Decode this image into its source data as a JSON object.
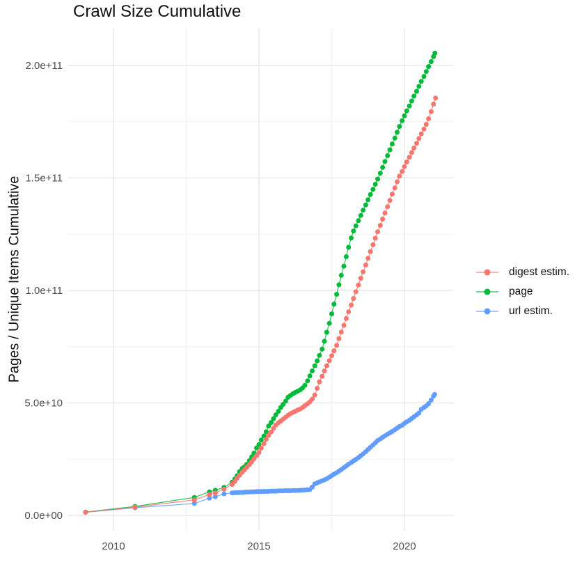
{
  "chart_data": {
    "type": "scatter",
    "title": "Crawl Size Cumulative",
    "xlabel": "",
    "ylabel": "Pages / Unique Items Cumulative",
    "legend_position": "right",
    "grid": true,
    "y_value_unit": "1e9",
    "x_axis": {
      "range": [
        2008.42,
        2021.7
      ],
      "ticks": [
        2010,
        2015,
        2020
      ],
      "tick_labels": [
        "2010",
        "2015",
        "2020"
      ],
      "minor_ticks": [
        2012.5,
        2017.5
      ]
    },
    "y_axis": {
      "range": [
        -6.8,
        216.7
      ],
      "ticks": [
        0,
        50,
        100,
        150,
        200
      ],
      "tick_labels": [
        "0.0e+00",
        "5.0e+10",
        "1.0e+11",
        "1.5e+11",
        "2.0e+11"
      ],
      "minor_ticks": [
        25,
        75,
        125,
        175
      ]
    },
    "series": [
      {
        "name": "digest estim.",
        "color": "#F8766D",
        "points": [
          [
            2009.04,
            1.4
          ],
          [
            2010.74,
            3.7
          ],
          [
            2012.78,
            6.9
          ],
          [
            2013.3,
            9.3
          ],
          [
            2013.5,
            10
          ],
          [
            2013.8,
            11.7
          ],
          [
            2014.08,
            13.8
          ],
          [
            2014.17,
            15.1
          ],
          [
            2014.25,
            16.5
          ],
          [
            2014.33,
            17.9
          ],
          [
            2014.42,
            19.2
          ],
          [
            2014.5,
            20.3
          ],
          [
            2014.58,
            21.4
          ],
          [
            2014.67,
            22.6
          ],
          [
            2014.75,
            23.8
          ],
          [
            2014.83,
            25.2
          ],
          [
            2014.92,
            26.6
          ],
          [
            2015,
            28
          ],
          [
            2015.08,
            29.9
          ],
          [
            2015.17,
            31.9
          ],
          [
            2015.25,
            33.8
          ],
          [
            2015.33,
            35.6
          ],
          [
            2015.42,
            37.1
          ],
          [
            2015.5,
            38.7
          ],
          [
            2015.58,
            40.2
          ],
          [
            2015.67,
            41.2
          ],
          [
            2015.75,
            42
          ],
          [
            2015.83,
            42.8
          ],
          [
            2015.92,
            43.7
          ],
          [
            2016,
            44.5
          ],
          [
            2016.08,
            45.2
          ],
          [
            2016.17,
            45.8
          ],
          [
            2016.25,
            46.3
          ],
          [
            2016.33,
            46.8
          ],
          [
            2016.42,
            47.3
          ],
          [
            2016.5,
            48
          ],
          [
            2016.58,
            48.8
          ],
          [
            2016.67,
            49.6
          ],
          [
            2016.75,
            50.5
          ],
          [
            2016.83,
            51.7
          ],
          [
            2016.92,
            53.5
          ],
          [
            2017,
            56.5
          ],
          [
            2017.08,
            59.4
          ],
          [
            2017.17,
            61.9
          ],
          [
            2017.25,
            64.2
          ],
          [
            2017.33,
            66.5
          ],
          [
            2017.42,
            68.8
          ],
          [
            2017.5,
            71
          ],
          [
            2017.58,
            73.2
          ],
          [
            2017.67,
            75.6
          ],
          [
            2017.75,
            78.6
          ],
          [
            2017.83,
            81.5
          ],
          [
            2017.92,
            84.5
          ],
          [
            2018,
            87.5
          ],
          [
            2018.08,
            90.5
          ],
          [
            2018.17,
            93.5
          ],
          [
            2018.25,
            96.4
          ],
          [
            2018.33,
            99.4
          ],
          [
            2018.42,
            102.4
          ],
          [
            2018.5,
            105.4
          ],
          [
            2018.58,
            108.3
          ],
          [
            2018.67,
            111.3
          ],
          [
            2018.75,
            114.3
          ],
          [
            2018.83,
            117.3
          ],
          [
            2018.92,
            120.3
          ],
          [
            2019,
            123.2
          ],
          [
            2019.08,
            126.1
          ],
          [
            2019.17,
            128.9
          ],
          [
            2019.25,
            131.7
          ],
          [
            2019.33,
            134.4
          ],
          [
            2019.42,
            137.2
          ],
          [
            2019.5,
            140
          ],
          [
            2019.58,
            142.8
          ],
          [
            2019.67,
            145.6
          ],
          [
            2019.75,
            148.3
          ],
          [
            2019.83,
            150.8
          ],
          [
            2019.92,
            152.9
          ],
          [
            2020,
            155
          ],
          [
            2020.08,
            157.1
          ],
          [
            2020.17,
            159.2
          ],
          [
            2020.25,
            161.3
          ],
          [
            2020.33,
            163.3
          ],
          [
            2020.42,
            165.4
          ],
          [
            2020.5,
            167.5
          ],
          [
            2020.58,
            169.6
          ],
          [
            2020.67,
            171.7
          ],
          [
            2020.75,
            173.8
          ],
          [
            2020.83,
            176.3
          ],
          [
            2020.92,
            179.5
          ],
          [
            2021,
            182.8
          ],
          [
            2021.07,
            185.5
          ]
        ]
      },
      {
        "name": "page",
        "color": "#00BA38",
        "points": [
          [
            2009.04,
            1.5
          ],
          [
            2010.74,
            4
          ],
          [
            2012.78,
            8
          ],
          [
            2013.3,
            10.5
          ],
          [
            2013.5,
            11.2
          ],
          [
            2013.8,
            12.5
          ],
          [
            2014.08,
            14.8
          ],
          [
            2014.17,
            16.2
          ],
          [
            2014.25,
            17.7
          ],
          [
            2014.33,
            19.4
          ],
          [
            2014.42,
            20.8
          ],
          [
            2014.5,
            21.6
          ],
          [
            2014.58,
            22.7
          ],
          [
            2014.67,
            24.3
          ],
          [
            2014.75,
            26
          ],
          [
            2014.83,
            27.7
          ],
          [
            2014.92,
            30
          ],
          [
            2015,
            31.5
          ],
          [
            2015.08,
            33.5
          ],
          [
            2015.17,
            35.3
          ],
          [
            2015.25,
            37.2
          ],
          [
            2015.33,
            39.7
          ],
          [
            2015.42,
            41.3
          ],
          [
            2015.5,
            43
          ],
          [
            2015.58,
            44.7
          ],
          [
            2015.67,
            46.3
          ],
          [
            2015.75,
            48
          ],
          [
            2015.83,
            49.4
          ],
          [
            2015.92,
            50.8
          ],
          [
            2016,
            52.5
          ],
          [
            2016.08,
            53.3
          ],
          [
            2016.17,
            54.1
          ],
          [
            2016.25,
            54.7
          ],
          [
            2016.33,
            55.2
          ],
          [
            2016.42,
            55.8
          ],
          [
            2016.5,
            56.7
          ],
          [
            2016.58,
            57.8
          ],
          [
            2016.67,
            59.8
          ],
          [
            2016.75,
            62
          ],
          [
            2016.83,
            64.2
          ],
          [
            2016.92,
            66.5
          ],
          [
            2017,
            68.7
          ],
          [
            2017.08,
            71.1
          ],
          [
            2017.17,
            73.9
          ],
          [
            2017.25,
            77.4
          ],
          [
            2017.33,
            81.4
          ],
          [
            2017.42,
            85.4
          ],
          [
            2017.5,
            89.6
          ],
          [
            2017.58,
            93.9
          ],
          [
            2017.67,
            98.3
          ],
          [
            2017.75,
            102.5
          ],
          [
            2017.83,
            106.7
          ],
          [
            2017.92,
            110.8
          ],
          [
            2018,
            115
          ],
          [
            2018.08,
            119.2
          ],
          [
            2018.17,
            123.3
          ],
          [
            2018.25,
            126.4
          ],
          [
            2018.33,
            128.7
          ],
          [
            2018.42,
            131
          ],
          [
            2018.5,
            133.3
          ],
          [
            2018.58,
            135.7
          ],
          [
            2018.67,
            138
          ],
          [
            2018.75,
            140.3
          ],
          [
            2018.83,
            142.6
          ],
          [
            2018.92,
            144.9
          ],
          [
            2019,
            147.2
          ],
          [
            2019.08,
            149.5
          ],
          [
            2019.17,
            152.1
          ],
          [
            2019.25,
            154.7
          ],
          [
            2019.33,
            157.3
          ],
          [
            2019.42,
            159.9
          ],
          [
            2019.5,
            162.5
          ],
          [
            2019.58,
            165.1
          ],
          [
            2019.67,
            167.7
          ],
          [
            2019.75,
            170.3
          ],
          [
            2019.83,
            172.9
          ],
          [
            2019.92,
            175.4
          ],
          [
            2020,
            177.6
          ],
          [
            2020.08,
            179.8
          ],
          [
            2020.17,
            182
          ],
          [
            2020.25,
            184.2
          ],
          [
            2020.33,
            186.4
          ],
          [
            2020.42,
            188.5
          ],
          [
            2020.5,
            190.7
          ],
          [
            2020.58,
            192.9
          ],
          [
            2020.67,
            195.1
          ],
          [
            2020.75,
            197.3
          ],
          [
            2020.83,
            199.5
          ],
          [
            2020.92,
            201.7
          ],
          [
            2021,
            203.9
          ],
          [
            2021.05,
            205.5
          ]
        ]
      },
      {
        "name": "url estim.",
        "color": "#619CFF",
        "points": [
          [
            2009.04,
            1.4
          ],
          [
            2010.74,
            3.4
          ],
          [
            2012.78,
            5.3
          ],
          [
            2013.3,
            7.7
          ],
          [
            2013.5,
            8.3
          ],
          [
            2013.8,
            9.6
          ],
          [
            2014.08,
            10
          ],
          [
            2014.17,
            10.1
          ],
          [
            2014.25,
            10.1
          ],
          [
            2014.33,
            10.2
          ],
          [
            2014.42,
            10.2
          ],
          [
            2014.5,
            10.3
          ],
          [
            2014.58,
            10.4
          ],
          [
            2014.67,
            10.4
          ],
          [
            2014.75,
            10.5
          ],
          [
            2014.83,
            10.5
          ],
          [
            2014.92,
            10.6
          ],
          [
            2015,
            10.6
          ],
          [
            2015.08,
            10.6
          ],
          [
            2015.17,
            10.7
          ],
          [
            2015.25,
            10.7
          ],
          [
            2015.33,
            10.7
          ],
          [
            2015.42,
            10.8
          ],
          [
            2015.5,
            10.8
          ],
          [
            2015.58,
            10.8
          ],
          [
            2015.67,
            10.9
          ],
          [
            2015.75,
            10.9
          ],
          [
            2015.83,
            10.9
          ],
          [
            2015.92,
            11
          ],
          [
            2016,
            11
          ],
          [
            2016.08,
            11
          ],
          [
            2016.17,
            11.1
          ],
          [
            2016.25,
            11.1
          ],
          [
            2016.33,
            11.1
          ],
          [
            2016.42,
            11.2
          ],
          [
            2016.5,
            11.2
          ],
          [
            2016.58,
            11.3
          ],
          [
            2016.67,
            11.4
          ],
          [
            2016.75,
            11.5
          ],
          [
            2016.83,
            12.6
          ],
          [
            2016.92,
            14
          ],
          [
            2017,
            14.5
          ],
          [
            2017.08,
            14.9
          ],
          [
            2017.17,
            15.4
          ],
          [
            2017.25,
            15.8
          ],
          [
            2017.33,
            16.3
          ],
          [
            2017.42,
            17
          ],
          [
            2017.5,
            17.7
          ],
          [
            2017.58,
            18.4
          ],
          [
            2017.67,
            19
          ],
          [
            2017.75,
            19.7
          ],
          [
            2017.83,
            20.4
          ],
          [
            2017.92,
            21.2
          ],
          [
            2018,
            22
          ],
          [
            2018.08,
            22.8
          ],
          [
            2018.17,
            23.5
          ],
          [
            2018.25,
            24.2
          ],
          [
            2018.33,
            24.9
          ],
          [
            2018.42,
            25.7
          ],
          [
            2018.5,
            26.5
          ],
          [
            2018.58,
            27.3
          ],
          [
            2018.67,
            28.3
          ],
          [
            2018.75,
            29.3
          ],
          [
            2018.83,
            30.3
          ],
          [
            2018.92,
            31.3
          ],
          [
            2019,
            32.3
          ],
          [
            2019.08,
            33.3
          ],
          [
            2019.17,
            34
          ],
          [
            2019.25,
            34.7
          ],
          [
            2019.33,
            35.4
          ],
          [
            2019.42,
            36.1
          ],
          [
            2019.5,
            36.7
          ],
          [
            2019.58,
            37.3
          ],
          [
            2019.67,
            38.1
          ],
          [
            2019.75,
            38.8
          ],
          [
            2019.83,
            39.5
          ],
          [
            2019.92,
            40.1
          ],
          [
            2020,
            40.9
          ],
          [
            2020.08,
            41.6
          ],
          [
            2020.17,
            42.3
          ],
          [
            2020.25,
            43.1
          ],
          [
            2020.33,
            43.8
          ],
          [
            2020.42,
            44.7
          ],
          [
            2020.5,
            45.5
          ],
          [
            2020.58,
            47.2
          ],
          [
            2020.67,
            48
          ],
          [
            2020.75,
            48.7
          ],
          [
            2020.83,
            49.7
          ],
          [
            2020.92,
            51.3
          ],
          [
            2021,
            53
          ],
          [
            2021.04,
            53.8
          ]
        ]
      }
    ]
  }
}
